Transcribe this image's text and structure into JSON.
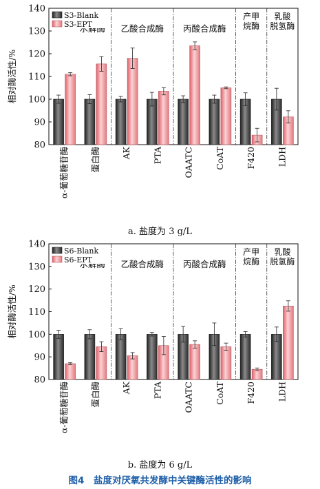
{
  "figure_title": "图4　盐度对厌氧共发酵中关键酶活性的影响",
  "chart_data": [
    {
      "type": "bar",
      "caption": "a. 盐度为 3 g/L",
      "ylabel": "相对酶活性/%",
      "ylim": [
        80,
        140
      ],
      "yticks": [
        80,
        90,
        100,
        110,
        120,
        130,
        140
      ],
      "categories": [
        "α-葡萄糖苷酶",
        "蛋白酶",
        "AK",
        "PTA",
        "OAATC",
        "CoAT",
        "F420",
        "LDH"
      ],
      "groups": [
        {
          "label": "水解酶",
          "categories": [
            0,
            1
          ]
        },
        {
          "label": "乙酸合成酶",
          "categories": [
            2,
            3
          ]
        },
        {
          "label": "丙酸合成酶",
          "categories": [
            4,
            5
          ]
        },
        {
          "label": "产甲烷酶",
          "categories": [
            6
          ]
        },
        {
          "label": "乳酸脱氢酶",
          "categories": [
            7
          ]
        }
      ],
      "legend_position": "top-left",
      "series": [
        {
          "name": "S3-Blank",
          "color": "#404040",
          "values": [
            100,
            100,
            100,
            100,
            100,
            100,
            100,
            100
          ],
          "errors": [
            1.8,
            2.0,
            1.2,
            3.0,
            1.5,
            1.8,
            2.8,
            4.8
          ]
        },
        {
          "name": "S3-EPT",
          "color": "#f0888c",
          "values": [
            111,
            115.5,
            118,
            103.5,
            123.5,
            105,
            84.2,
            92.2
          ],
          "errors": [
            0.7,
            3.2,
            4.5,
            1.6,
            1.7,
            0.4,
            3.0,
            2.7
          ]
        }
      ]
    },
    {
      "type": "bar",
      "caption": "b. 盐度为 6 g/L",
      "ylabel": "相对酶活性/%",
      "ylim": [
        80,
        140
      ],
      "yticks": [
        80,
        90,
        100,
        110,
        120,
        130,
        140
      ],
      "categories": [
        "α-葡萄糖苷酶",
        "蛋白酶",
        "AK",
        "PTA",
        "OAATC",
        "CoAT",
        "F420",
        "LDH"
      ],
      "groups": [
        {
          "label": "水解酶",
          "categories": [
            0,
            1
          ]
        },
        {
          "label": "乙酸合成酶",
          "categories": [
            2,
            3
          ]
        },
        {
          "label": "丙酸合成酶",
          "categories": [
            4,
            5
          ]
        },
        {
          "label": "产甲烷酶",
          "categories": [
            6
          ]
        },
        {
          "label": "乳酸脱氢酶",
          "categories": [
            7
          ]
        }
      ],
      "legend_position": "top-left",
      "series": [
        {
          "name": "S6-Blank",
          "color": "#404040",
          "values": [
            100,
            100,
            100,
            100,
            100,
            100,
            100,
            100
          ],
          "errors": [
            1.8,
            2.0,
            2.5,
            0.8,
            3.5,
            5.0,
            1.2,
            3.2
          ]
        },
        {
          "name": "S6-EPT",
          "color": "#f0888c",
          "values": [
            87,
            94.5,
            90.5,
            95,
            95.5,
            94.5,
            84.5,
            112.5
          ],
          "errors": [
            0.4,
            2.2,
            1.4,
            4.0,
            1.6,
            1.6,
            0.6,
            2.3
          ]
        }
      ]
    }
  ]
}
